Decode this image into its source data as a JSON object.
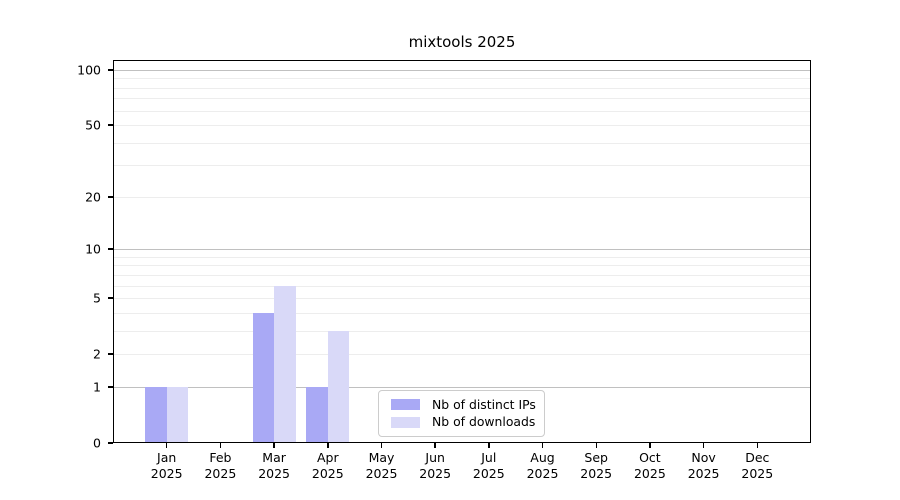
{
  "title": "mixtools 2025",
  "chart_data": {
    "type": "bar",
    "title": "mixtools 2025",
    "categories": [
      "Jan 2025",
      "Feb 2025",
      "Mar 2025",
      "Apr 2025",
      "May 2025",
      "Jun 2025",
      "Jul 2025",
      "Aug 2025",
      "Sep 2025",
      "Oct 2025",
      "Nov 2025",
      "Dec 2025"
    ],
    "series": [
      {
        "name": "Nb of distinct IPs",
        "color": "#a9a9f5",
        "values": [
          1,
          0,
          4,
          1,
          0,
          0,
          0,
          0,
          0,
          0,
          0,
          0
        ]
      },
      {
        "name": "Nb of downloads",
        "color": "#d9d9f8",
        "values": [
          1,
          0,
          6,
          3,
          0,
          0,
          0,
          0,
          0,
          0,
          0,
          0
        ]
      }
    ],
    "xlabel": "",
    "ylabel": "",
    "yscale": "log1p",
    "ylim": [
      0,
      113
    ],
    "yticks": [
      0,
      1,
      2,
      5,
      10,
      20,
      50,
      100
    ],
    "minor_gridlines": [
      3,
      4,
      6,
      7,
      8,
      9,
      30,
      40,
      60,
      70,
      80,
      90
    ],
    "grid": "horizontal",
    "legend_position": "inside-lower-center",
    "colors": {
      "axis": "#000000",
      "major_grid": "#c0c0c0",
      "minor_grid": "#ededed",
      "legend_border": "#cccccc",
      "background": "#ffffff"
    }
  }
}
